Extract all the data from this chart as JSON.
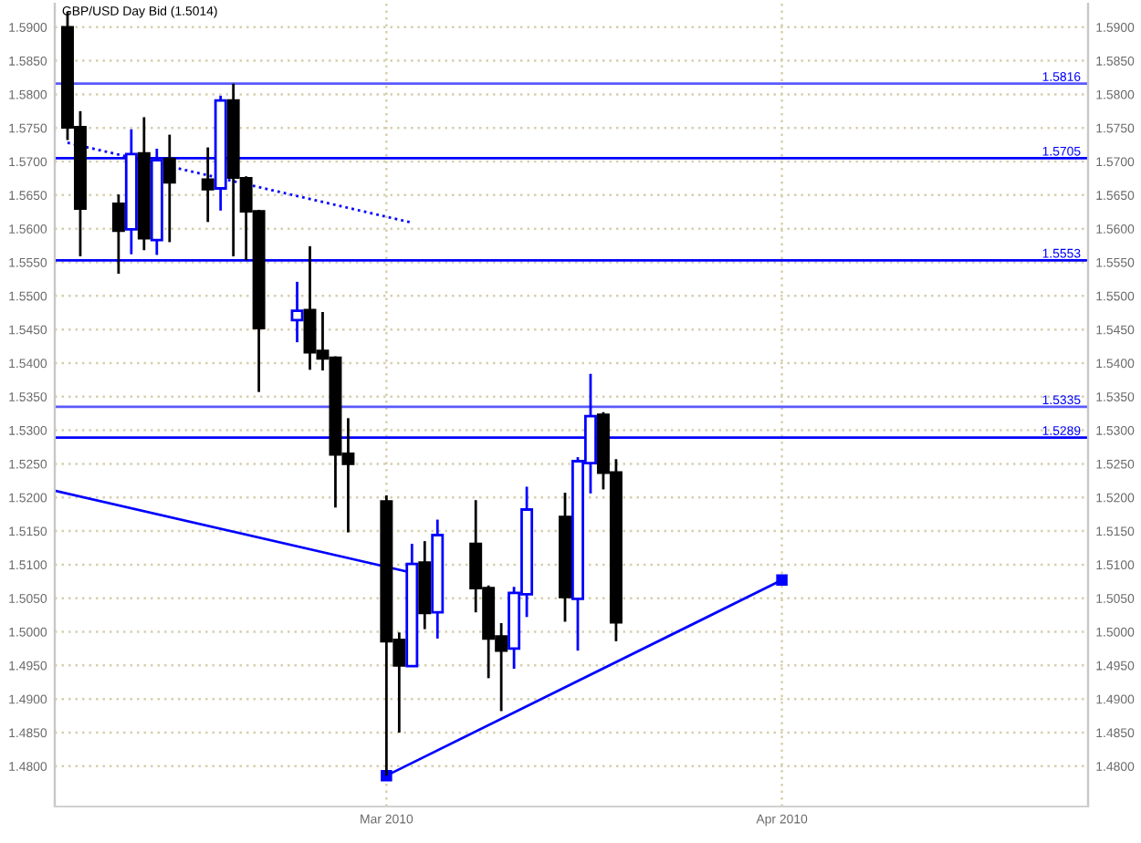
{
  "chart_data": {
    "type": "candlestick",
    "title": "GBP/USD Day Bid (1.5014)",
    "x": [
      "2010-02-04",
      "2010-02-05",
      "2010-02-08",
      "2010-02-09",
      "2010-02-10",
      "2010-02-11",
      "2010-02-12",
      "2010-02-15",
      "2010-02-16",
      "2010-02-17",
      "2010-02-18",
      "2010-02-19",
      "2010-02-22",
      "2010-02-23",
      "2010-02-24",
      "2010-02-25",
      "2010-02-26",
      "2010-03-01",
      "2010-03-02",
      "2010-03-03",
      "2010-03-04",
      "2010-03-05",
      "2010-03-08",
      "2010-03-09",
      "2010-03-10",
      "2010-03-11",
      "2010-03-12",
      "2010-03-15",
      "2010-03-16",
      "2010-03-17",
      "2010-03-18",
      "2010-03-19"
    ],
    "ohlc": [
      [
        1.59,
        1.5923,
        1.5732,
        1.5751
      ],
      [
        1.5751,
        1.5775,
        1.5559,
        1.563
      ],
      [
        1.5637,
        1.5651,
        1.5533,
        1.5597
      ],
      [
        1.5599,
        1.5748,
        1.5562,
        1.5711
      ],
      [
        1.5712,
        1.5766,
        1.5568,
        1.5586
      ],
      [
        1.5583,
        1.5719,
        1.5561,
        1.5702
      ],
      [
        1.5704,
        1.574,
        1.558,
        1.5669
      ],
      [
        1.5673,
        1.5721,
        1.561,
        1.5659
      ],
      [
        1.566,
        1.5798,
        1.5627,
        1.5791
      ],
      [
        1.5791,
        1.5816,
        1.5559,
        1.5676
      ],
      [
        1.5675,
        1.5678,
        1.5553,
        1.5626
      ],
      [
        1.5626,
        1.5628,
        1.5357,
        1.5452
      ],
      [
        1.5464,
        1.5521,
        1.5431,
        1.5478
      ],
      [
        1.5479,
        1.5574,
        1.539,
        1.5416
      ],
      [
        1.5418,
        1.5476,
        1.5389,
        1.5407
      ],
      [
        1.5408,
        1.541,
        1.5185,
        1.5264
      ],
      [
        1.5265,
        1.5318,
        1.5148,
        1.525
      ],
      [
        1.5194,
        1.5203,
        1.4786,
        1.4986
      ],
      [
        1.4988,
        1.4999,
        1.485,
        1.495
      ],
      [
        1.4949,
        1.5131,
        1.4949,
        1.5101
      ],
      [
        1.5103,
        1.5135,
        1.5004,
        1.5028
      ],
      [
        1.5029,
        1.5167,
        1.499,
        1.5144
      ],
      [
        1.5131,
        1.5196,
        1.5029,
        1.5065
      ],
      [
        1.5065,
        1.5069,
        1.4931,
        1.499
      ],
      [
        1.4993,
        1.5013,
        1.4882,
        1.4972
      ],
      [
        1.4975,
        1.5067,
        1.4945,
        1.5058
      ],
      [
        1.5056,
        1.5216,
        1.5022,
        1.5182
      ],
      [
        1.5171,
        1.5207,
        1.5015,
        1.5052
      ],
      [
        1.5049,
        1.526,
        1.4972,
        1.5254
      ],
      [
        1.5251,
        1.5384,
        1.5206,
        1.5321
      ],
      [
        1.5323,
        1.5327,
        1.5212,
        1.5237
      ],
      [
        1.5237,
        1.5257,
        1.4986,
        1.5014
      ]
    ],
    "colors": [
      "#000000",
      "#000000",
      "#000000",
      "#0000ff",
      "#000000",
      "#0000ff",
      "#000000",
      "#000000",
      "#0000ff",
      "#000000",
      "#000000",
      "#000000",
      "#0000ff",
      "#000000",
      "#000000",
      "#000000",
      "#000000",
      "#000000",
      "#000000",
      "#0000ff",
      "#000000",
      "#0000ff",
      "#000000",
      "#000000",
      "#000000",
      "#0000ff",
      "#0000ff",
      "#000000",
      "#0000ff",
      "#0000ff",
      "#000000",
      "#000000"
    ],
    "series": [
      {
        "type": "line",
        "x": [
          "2010-02-04",
          "2010-03-03"
        ],
        "values": [
          1.5728,
          1.5609
        ],
        "color": "#0000ff",
        "line_style": "dotted"
      },
      {
        "type": "line",
        "x": [
          "2010-02-03",
          "2010-03-03"
        ],
        "values": [
          1.521,
          1.5088
        ],
        "color": "#0000ff",
        "line_style": "solid"
      },
      {
        "type": "line",
        "x": [
          "2010-03-01",
          "2010-04-01"
        ],
        "values": [
          1.4786,
          1.5077
        ],
        "color": "#0000ff",
        "line_style": "solid",
        "marker": "square"
      }
    ],
    "ref_lines": [
      {
        "axis": "y",
        "value": 1.5816,
        "label": "1.5816",
        "color": "#5a5aff"
      },
      {
        "axis": "y",
        "value": 1.5705,
        "label": "1.5705",
        "color": "#0000ff"
      },
      {
        "axis": "y",
        "value": 1.5553,
        "label": "1.5553",
        "color": "#0000ff"
      },
      {
        "axis": "y",
        "value": 1.5335,
        "label": "1.5335",
        "color": "#5a5aff"
      },
      {
        "axis": "y",
        "value": 1.5289,
        "label": "1.5289",
        "color": "#0000ff"
      }
    ],
    "xlim": [
      "2010-02-03",
      "2010-04-25"
    ],
    "xticks": [
      {
        "value": "2010-03-01",
        "label": "Mar 2010"
      },
      {
        "value": "2010-04-01",
        "label": "Apr 2010"
      }
    ],
    "ylim": [
      1.474,
      1.5935
    ],
    "yticks": [
      {
        "value": 1.48,
        "label": "1.4800"
      },
      {
        "value": 1.485,
        "label": "1.4850"
      },
      {
        "value": 1.49,
        "label": "1.4900"
      },
      {
        "value": 1.495,
        "label": "1.4950"
      },
      {
        "value": 1.5,
        "label": "1.5000"
      },
      {
        "value": 1.505,
        "label": "1.5050"
      },
      {
        "value": 1.51,
        "label": "1.5100"
      },
      {
        "value": 1.515,
        "label": "1.5150"
      },
      {
        "value": 1.52,
        "label": "1.5200"
      },
      {
        "value": 1.525,
        "label": "1.5250"
      },
      {
        "value": 1.53,
        "label": "1.5300"
      },
      {
        "value": 1.535,
        "label": "1.5350"
      },
      {
        "value": 1.54,
        "label": "1.5400"
      },
      {
        "value": 1.545,
        "label": "1.5450"
      },
      {
        "value": 1.55,
        "label": "1.5500"
      },
      {
        "value": 1.555,
        "label": "1.5550"
      },
      {
        "value": 1.56,
        "label": "1.5600"
      },
      {
        "value": 1.565,
        "label": "1.5650"
      },
      {
        "value": 1.57,
        "label": "1.5700"
      },
      {
        "value": 1.575,
        "label": "1.5750"
      },
      {
        "value": 1.58,
        "label": "1.5800"
      },
      {
        "value": 1.585,
        "label": "1.5850"
      },
      {
        "value": 1.59,
        "label": "1.5900"
      }
    ],
    "y2lim": [
      1.474,
      1.5935
    ],
    "y2ticks": [
      {
        "value": 1.48,
        "label": "1.4800"
      },
      {
        "value": 1.485,
        "label": "1.4850"
      },
      {
        "value": 1.49,
        "label": "1.4900"
      },
      {
        "value": 1.495,
        "label": "1.4950"
      },
      {
        "value": 1.5,
        "label": "1.5000"
      },
      {
        "value": 1.505,
        "label": "1.5050"
      },
      {
        "value": 1.51,
        "label": "1.5100"
      },
      {
        "value": 1.515,
        "label": "1.5150"
      },
      {
        "value": 1.52,
        "label": "1.5200"
      },
      {
        "value": 1.525,
        "label": "1.5250"
      },
      {
        "value": 1.53,
        "label": "1.5300"
      },
      {
        "value": 1.535,
        "label": "1.5350"
      },
      {
        "value": 1.54,
        "label": "1.5400"
      },
      {
        "value": 1.545,
        "label": "1.5450"
      },
      {
        "value": 1.55,
        "label": "1.5500"
      },
      {
        "value": 1.555,
        "label": "1.5550"
      },
      {
        "value": 1.56,
        "label": "1.5600"
      },
      {
        "value": 1.565,
        "label": "1.5650"
      },
      {
        "value": 1.57,
        "label": "1.5700"
      },
      {
        "value": 1.575,
        "label": "1.5750"
      },
      {
        "value": 1.58,
        "label": "1.5800"
      },
      {
        "value": 1.585,
        "label": "1.5850"
      },
      {
        "value": 1.59,
        "label": "1.5900"
      }
    ],
    "grid": true
  }
}
